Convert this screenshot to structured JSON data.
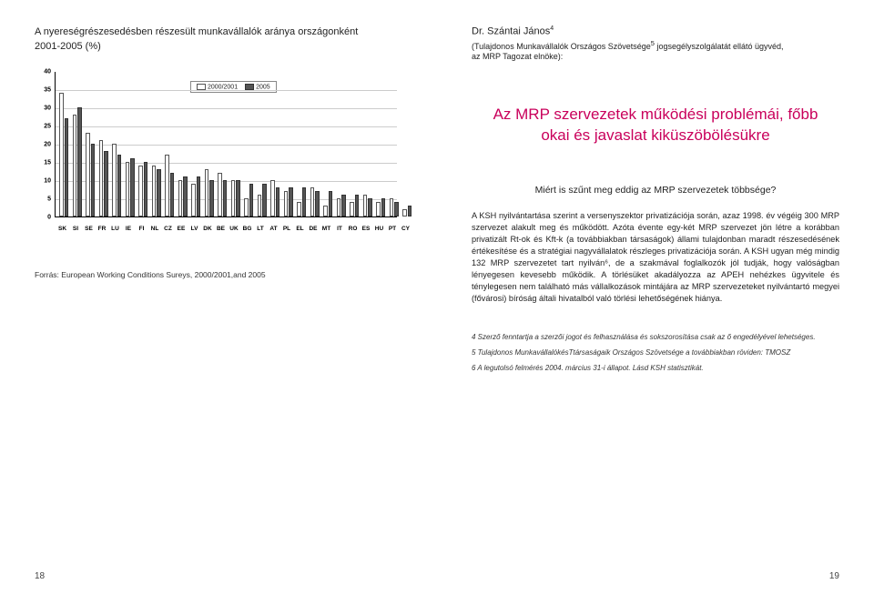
{
  "left": {
    "title": "A nyereségrészesedésben részesült munkavállalók aránya országonként",
    "subtitle": "2001-2005 (%)",
    "chart": {
      "type": "bar",
      "ylim": [
        0,
        40
      ],
      "ytick_step": 5,
      "yticks": [
        0,
        5,
        10,
        15,
        20,
        25,
        30,
        35,
        40
      ],
      "categories": [
        "SK",
        "SI",
        "SE",
        "FR",
        "LU",
        "IE",
        "FI",
        "NL",
        "CZ",
        "EE",
        "LV",
        "DK",
        "BE",
        "UK",
        "BG",
        "LT",
        "AT",
        "PL",
        "EL",
        "DE",
        "MT",
        "IT",
        "RO",
        "ES",
        "HU",
        "PT",
        "CY"
      ],
      "series": [
        {
          "label": "2000/2001",
          "values": [
            34,
            28,
            23,
            21,
            20,
            15,
            14,
            14,
            17,
            10,
            9,
            13,
            12,
            10,
            5,
            6,
            10,
            7,
            4,
            8,
            3,
            5,
            4,
            6,
            4,
            5,
            2
          ],
          "fill": "#ffffff",
          "border": "#555555"
        },
        {
          "label": "2005",
          "values": [
            27,
            30,
            20,
            18,
            17,
            16,
            15,
            13,
            12,
            11,
            11,
            10,
            10,
            10,
            9,
            9,
            8,
            8,
            8,
            7,
            7,
            6,
            6,
            5,
            5,
            4,
            3
          ],
          "fill": "#555555",
          "border": "#333333"
        }
      ],
      "grid_color": "#cccccc",
      "axis_color": "#000000",
      "background": "#ffffff",
      "bar_width": 4.5,
      "group_gap": 4.5,
      "tick_fontsize": 7
    },
    "source": "Forrás: European Working Conditions Sureys, 2000/2001,and 2005",
    "pagenum": "18"
  },
  "right": {
    "author_prefix": "Dr. Szántai János",
    "author_sup": "4",
    "affil_line1": "(Tulajdonos Munkavállalók Országos Szövetsége",
    "affil_sup": "5",
    "affil_line2": " jogsegélyszolgálatát ellátó ügyvéd,",
    "affil_line3": "az MRP Tagozat elnöke):",
    "heading": "Az MRP szervezetek működési problémái, főbb okai és javaslat kiküszöbölésükre",
    "lead": "Miért is szűnt meg eddig az MRP szervezetek többsége?",
    "body": "A KSH nyilvántartása szerint a versenyszektor privatizációja során, azaz 1998. év végéig 300 MRP szervezet alakult meg és működött. Azóta évente egy-két MRP szervezet jön létre a korábban privatizált Rt-ok és Kft-k (a továbbiakban társaságok) állami tulajdonban maradt részesedésének értékesítése és a stratégiai nagyvállalatok részleges privatizációja során. A KSH ugyan még mindig 132 MRP szervezetet tart nyilván⁶, de a szakmával foglalkozók jól tudják, hogy valóságban lényegesen kevesebb működik. A törlésüket akadályozza az APEH nehézkes ügyvitele és ténylegesen nem található más vállalkozások mintájára az MRP szervezeteket nyilvántartó megyei (fővárosi) bíróság általi hivatalból való törlési lehetőségének hiánya.",
    "footnotes": {
      "f4": "4 Szerző fenntartja a szerzői jogot és felhasználása és sokszorosítása csak az ő engedélyével lehetséges.",
      "f5": "5 Tulajdonos MunkavállalókésTtársaságaik Országos Szövetsége a továbbiakban röviden: TMOSZ",
      "f6": "6 A legutolsó felmérés 2004. március 31-i állapot. Lásd KSH statisztikát."
    },
    "pagenum": "19"
  }
}
